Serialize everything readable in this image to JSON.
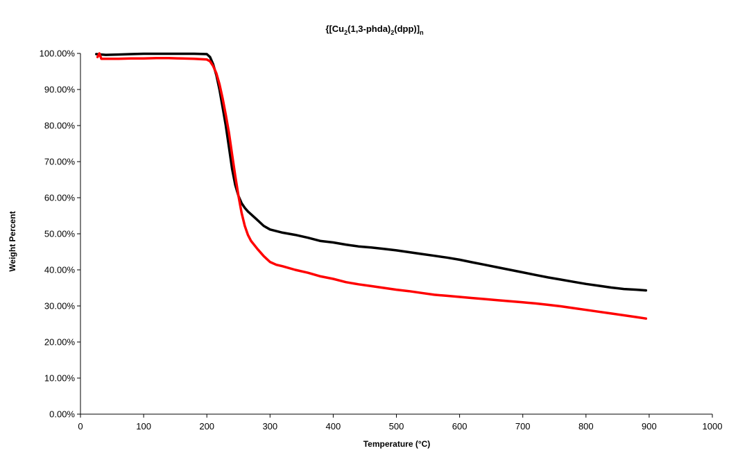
{
  "chart_data": {
    "type": "line",
    "title": {
      "prefix": "{[Cu",
      "sub1": "2",
      "mid": "(1,3-phda)",
      "sub2": "2",
      "suffix": "(dpp)]",
      "sub3": "n"
    },
    "xlabel": "Temperature (°C)",
    "ylabel": "Weight Percent",
    "xlim": [
      0,
      1000
    ],
    "ylim": [
      0,
      1
    ],
    "x_ticks": [
      0,
      100,
      200,
      300,
      400,
      500,
      600,
      700,
      800,
      900,
      1000
    ],
    "y_ticks": [
      0,
      0.1,
      0.2,
      0.3,
      0.4,
      0.5,
      0.6,
      0.7,
      0.8,
      0.9,
      1.0
    ],
    "x_tick_labels": [
      "0",
      "100",
      "200",
      "300",
      "400",
      "500",
      "600",
      "700",
      "800",
      "900",
      "1000"
    ],
    "y_tick_labels": [
      "0.00%",
      "10.00%",
      "20.00%",
      "30.00%",
      "40.00%",
      "50.00%",
      "60.00%",
      "70.00%",
      "80.00%",
      "90.00%",
      "100.00%"
    ],
    "grid": false,
    "legend": "none",
    "series": [
      {
        "color": "#000000",
        "x": [
          25,
          40,
          60,
          80,
          100,
          120,
          140,
          160,
          180,
          200,
          205,
          210,
          215,
          220,
          225,
          230,
          235,
          240,
          245,
          250,
          255,
          260,
          265,
          270,
          280,
          290,
          300,
          320,
          340,
          360,
          380,
          400,
          420,
          440,
          460,
          480,
          500,
          520,
          540,
          560,
          580,
          600,
          620,
          640,
          660,
          680,
          700,
          720,
          740,
          760,
          780,
          800,
          820,
          840,
          860,
          880,
          895
        ],
        "y": [
          0.998,
          0.996,
          0.997,
          0.998,
          0.999,
          0.999,
          0.999,
          0.999,
          0.999,
          0.998,
          0.99,
          0.97,
          0.94,
          0.9,
          0.85,
          0.8,
          0.74,
          0.68,
          0.635,
          0.605,
          0.585,
          0.572,
          0.562,
          0.554,
          0.538,
          0.522,
          0.512,
          0.503,
          0.497,
          0.489,
          0.48,
          0.476,
          0.47,
          0.465,
          0.462,
          0.458,
          0.454,
          0.449,
          0.444,
          0.439,
          0.434,
          0.428,
          0.421,
          0.414,
          0.407,
          0.4,
          0.393,
          0.386,
          0.379,
          0.373,
          0.367,
          0.361,
          0.356,
          0.351,
          0.347,
          0.345,
          0.343
        ]
      },
      {
        "color": "#ff0000",
        "x": [
          27,
          30,
          33,
          40,
          60,
          80,
          100,
          120,
          140,
          160,
          180,
          200,
          205,
          210,
          215,
          220,
          225,
          230,
          235,
          240,
          245,
          250,
          255,
          260,
          265,
          270,
          280,
          290,
          300,
          310,
          320,
          340,
          360,
          380,
          400,
          420,
          440,
          460,
          480,
          500,
          520,
          540,
          560,
          580,
          600,
          620,
          640,
          660,
          680,
          700,
          720,
          740,
          760,
          780,
          800,
          820,
          840,
          860,
          880,
          895
        ],
        "y": [
          0.99,
          1.0,
          0.985,
          0.985,
          0.985,
          0.986,
          0.986,
          0.987,
          0.987,
          0.986,
          0.985,
          0.983,
          0.978,
          0.965,
          0.945,
          0.915,
          0.875,
          0.83,
          0.78,
          0.72,
          0.66,
          0.605,
          0.558,
          0.522,
          0.497,
          0.48,
          0.458,
          0.438,
          0.422,
          0.414,
          0.41,
          0.4,
          0.392,
          0.382,
          0.375,
          0.366,
          0.36,
          0.355,
          0.35,
          0.345,
          0.341,
          0.336,
          0.331,
          0.328,
          0.325,
          0.322,
          0.319,
          0.316,
          0.313,
          0.31,
          0.307,
          0.303,
          0.299,
          0.294,
          0.289,
          0.284,
          0.279,
          0.274,
          0.269,
          0.265
        ]
      }
    ]
  }
}
